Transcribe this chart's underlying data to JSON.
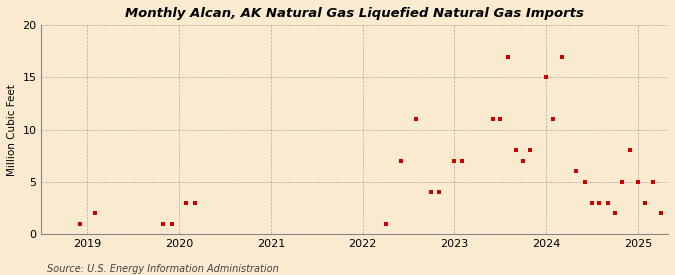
{
  "title": "Monthly Alcan, AK Natural Gas Liquefied Natural Gas Imports",
  "ylabel": "Million Cubic Feet",
  "source": "Source: U.S. Energy Information Administration",
  "xlim": [
    2018.5,
    2025.33
  ],
  "ylim": [
    0,
    20
  ],
  "yticks": [
    0,
    5,
    10,
    15,
    20
  ],
  "xticks": [
    2019,
    2020,
    2021,
    2022,
    2023,
    2024,
    2025
  ],
  "background_color": "#faebd0",
  "grid_color": "#999999",
  "marker_color": "#cc0000",
  "data_points": [
    [
      2018.92,
      1
    ],
    [
      2019.08,
      2
    ],
    [
      2019.83,
      1
    ],
    [
      2019.92,
      1
    ],
    [
      2020.08,
      3
    ],
    [
      2020.17,
      3
    ],
    [
      2022.25,
      1
    ],
    [
      2022.42,
      7
    ],
    [
      2022.58,
      11
    ],
    [
      2022.75,
      4
    ],
    [
      2022.83,
      4
    ],
    [
      2023.0,
      7
    ],
    [
      2023.08,
      7
    ],
    [
      2023.42,
      11
    ],
    [
      2023.5,
      11
    ],
    [
      2023.58,
      17
    ],
    [
      2023.67,
      8
    ],
    [
      2023.75,
      7
    ],
    [
      2023.83,
      8
    ],
    [
      2024.0,
      15
    ],
    [
      2024.08,
      11
    ],
    [
      2024.17,
      17
    ],
    [
      2024.33,
      6
    ],
    [
      2024.42,
      5
    ],
    [
      2024.5,
      3
    ],
    [
      2024.58,
      3
    ],
    [
      2024.67,
      3
    ],
    [
      2024.75,
      2
    ],
    [
      2024.83,
      5
    ],
    [
      2024.92,
      8
    ],
    [
      2025.0,
      5
    ],
    [
      2025.08,
      3
    ],
    [
      2025.17,
      5
    ],
    [
      2025.25,
      2
    ]
  ]
}
